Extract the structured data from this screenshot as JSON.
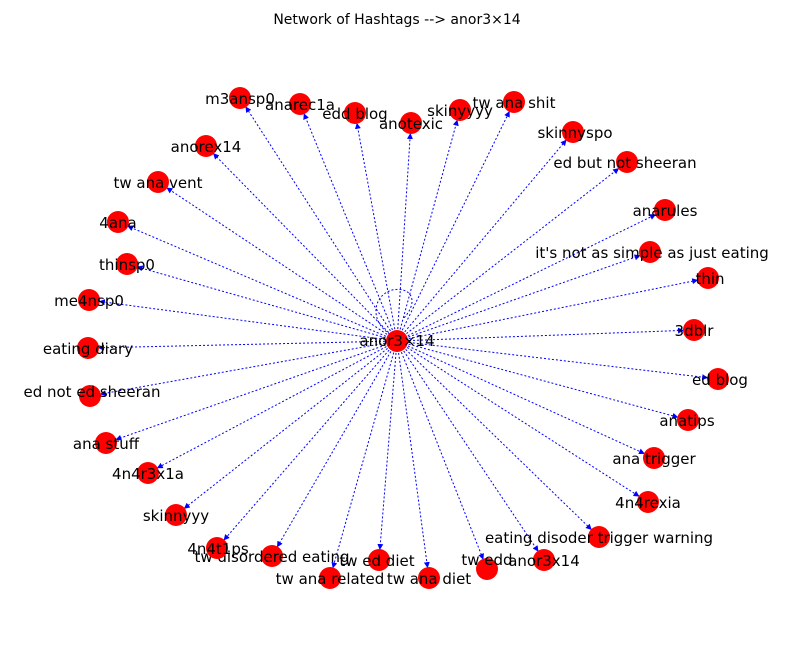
{
  "title": "Network of Hashtags --> anor3×14",
  "colors": {
    "node": "#ff0000",
    "edge": "#0000ff",
    "label": "#000000"
  },
  "center": {
    "label": "anor3×14"
  },
  "nodes": [
    {
      "label": "m3ansp0"
    },
    {
      "label": "anarec1a"
    },
    {
      "label": "edd blog"
    },
    {
      "label": "anotexic"
    },
    {
      "label": "skinyyyy"
    },
    {
      "label": "tw ana shit"
    },
    {
      "label": "skinnyspo"
    },
    {
      "label": "ed but not sheeran"
    },
    {
      "label": "anarules"
    },
    {
      "label": "it's not as simple as just eating"
    },
    {
      "label": "thin"
    },
    {
      "label": "3dblr"
    },
    {
      "label": "ed blog"
    },
    {
      "label": "anatips"
    },
    {
      "label": "ana trigger"
    },
    {
      "label": "4n4rexia"
    },
    {
      "label": "eating disoder trigger warning"
    },
    {
      "label": "anor3x14"
    },
    {
      "label": "tw edd"
    },
    {
      "label": "tw ana diet"
    },
    {
      "label": "tw ed diet"
    },
    {
      "label": "tw ana related"
    },
    {
      "label": "tw disordered eating"
    },
    {
      "label": "4n4t1ps"
    },
    {
      "label": "skinnyyy"
    },
    {
      "label": "4n4r3x1a"
    },
    {
      "label": "ana stuff"
    },
    {
      "label": "ed not ed sheeran"
    },
    {
      "label": "eating diary"
    },
    {
      "label": "me4nsp0"
    },
    {
      "label": "thinsp0"
    },
    {
      "label": "4ana"
    },
    {
      "label": "tw ana vent"
    },
    {
      "label": "anorex14"
    }
  ]
}
